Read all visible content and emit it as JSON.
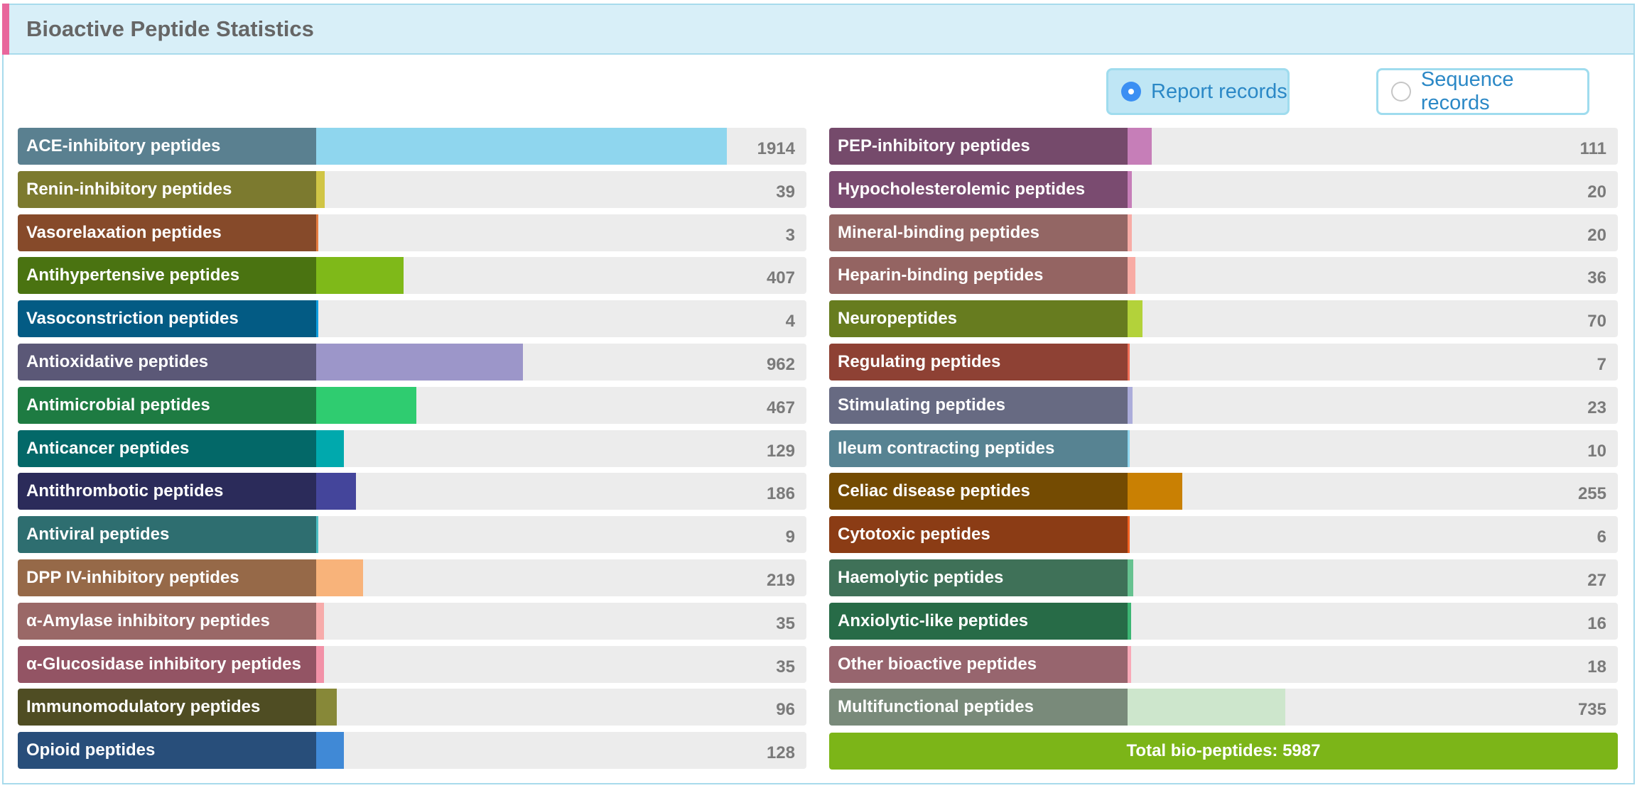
{
  "header": {
    "title": "Bioactive Peptide Statistics"
  },
  "radios": {
    "report": {
      "label": "Report records",
      "selected": true
    },
    "sequence": {
      "label": "Sequence records",
      "selected": false
    }
  },
  "total": {
    "label": "Total bio-peptides: 5987",
    "value": 5987
  },
  "chart_data": {
    "type": "bar",
    "orientation": "horizontal",
    "title": "Bioactive Peptide Statistics",
    "columns": [
      [
        {
          "name": "ACE-inhibitory peptides",
          "value": 1914,
          "label_color": "#5a8090",
          "bar_color": "#8fd6ee"
        },
        {
          "name": "Renin-inhibitory peptides",
          "value": 39,
          "label_color": "#7c7a2f",
          "bar_color": "#d0c545"
        },
        {
          "name": "Vasorelaxation peptides",
          "value": 3,
          "label_color": "#864a2a",
          "bar_color": "#e57d41"
        },
        {
          "name": "Antihypertensive peptides",
          "value": 407,
          "label_color": "#4a7311",
          "bar_color": "#7fb919"
        },
        {
          "name": "Vasoconstriction peptides",
          "value": 4,
          "label_color": "#035b84",
          "bar_color": "#0f9ee0"
        },
        {
          "name": "Antioxidative peptides",
          "value": 962,
          "label_color": "#5b5877",
          "bar_color": "#9c96c9"
        },
        {
          "name": "Antimicrobial peptides",
          "value": 467,
          "label_color": "#1e7b42",
          "bar_color": "#2fcc70"
        },
        {
          "name": "Anticancer peptides",
          "value": 129,
          "label_color": "#036868",
          "bar_color": "#00a9ad"
        },
        {
          "name": "Antithrombotic peptides",
          "value": 186,
          "label_color": "#2b2b5a",
          "bar_color": "#44459b"
        },
        {
          "name": "Antiviral peptides",
          "value": 9,
          "label_color": "#2e6e70",
          "bar_color": "#4cbec3"
        },
        {
          "name": "DPP IV-inhibitory peptides",
          "value": 219,
          "label_color": "#966948",
          "bar_color": "#f8b37a"
        },
        {
          "name": "α-Amylase inhibitory peptides",
          "value": 35,
          "label_color": "#9a6867",
          "bar_color": "#f7abaa"
        },
        {
          "name": "α-Glucosidase inhibitory peptides",
          "value": 35,
          "label_color": "#935464",
          "bar_color": "#f291a7"
        },
        {
          "name": "Immunomodulatory peptides",
          "value": 96,
          "label_color": "#4f4d23",
          "bar_color": "#878838"
        },
        {
          "name": "Opioid peptides",
          "value": 128,
          "label_color": "#284e7a",
          "bar_color": "#4089d6"
        }
      ],
      [
        {
          "name": "PEP-inhibitory peptides",
          "value": 111,
          "label_color": "#754a6b",
          "bar_color": "#c67eb8"
        },
        {
          "name": "Hypocholesterolemic peptides",
          "value": 20,
          "label_color": "#7a4b70",
          "bar_color": "#c67eb8"
        },
        {
          "name": "Mineral-binding peptides",
          "value": 20,
          "label_color": "#936664",
          "bar_color": "#f8aca6"
        },
        {
          "name": "Heparin-binding peptides",
          "value": 36,
          "label_color": "#946462",
          "bar_color": "#f8aba4"
        },
        {
          "name": "Neuropeptides",
          "value": 70,
          "label_color": "#677c1f",
          "bar_color": "#b3d23a"
        },
        {
          "name": "Regulating peptides",
          "value": 7,
          "label_color": "#8e4134",
          "bar_color": "#f27058"
        },
        {
          "name": "Stimulating peptides",
          "value": 23,
          "label_color": "#676a82",
          "bar_color": "#abacda"
        },
        {
          "name": "Ileum contracting peptides",
          "value": 10,
          "label_color": "#578392",
          "bar_color": "#8fd6ee"
        },
        {
          "name": "Celiac disease peptides",
          "value": 255,
          "label_color": "#744b02",
          "bar_color": "#c98003"
        },
        {
          "name": "Cytotoxic peptides",
          "value": 6,
          "label_color": "#8b3c15",
          "bar_color": "#f36323"
        },
        {
          "name": "Haemolytic peptides",
          "value": 27,
          "label_color": "#3f7158",
          "bar_color": "#66c290"
        },
        {
          "name": "Anxiolytic-like peptides",
          "value": 16,
          "label_color": "#276b47",
          "bar_color": "#3db674"
        },
        {
          "name": "Other bioactive peptides",
          "value": 18,
          "label_color": "#97656e",
          "bar_color": "#f9a9b8"
        },
        {
          "name": "Multifunctional peptides",
          "value": 735,
          "label_color": "#798a7a",
          "bar_color": "#cde6cc"
        }
      ]
    ]
  }
}
